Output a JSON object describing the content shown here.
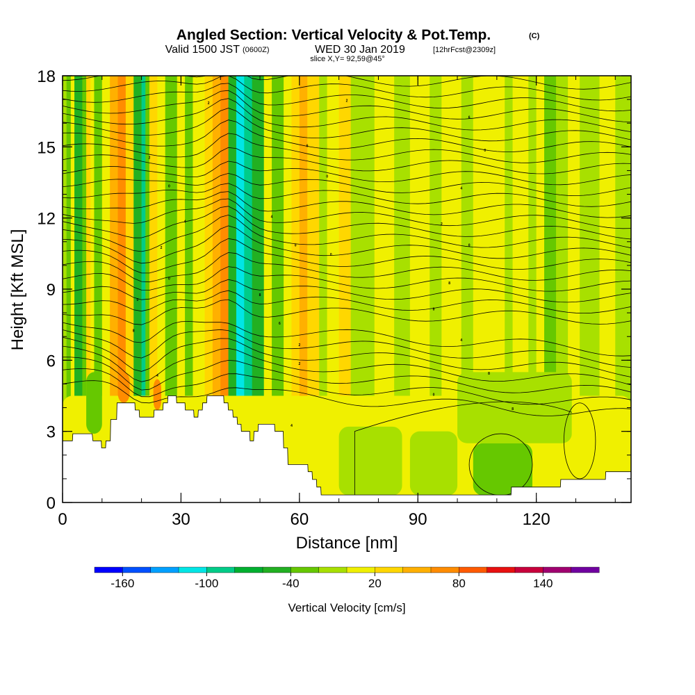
{
  "header": {
    "title": "Angled Section: Vertical Velocity & Pot.Temp.",
    "title_units": "(C)",
    "valid_prefix": "Valid 1500 JST",
    "valid_utc": "(0600Z)",
    "valid_date": "WED 30 Jan 2019",
    "forecast": "[12hrFcst@2309z]",
    "slice": "slice X,Y= 92,59@45°"
  },
  "chart_data": {
    "type": "heatmap",
    "xlabel": "Distance [nm]",
    "ylabel": "Height [Kft MSL]",
    "xlim": [
      0,
      144
    ],
    "ylim": [
      0,
      18
    ],
    "x_ticks": [
      "0",
      "30",
      "60",
      "90",
      "120"
    ],
    "y_ticks": [
      "0",
      "3",
      "6",
      "9",
      "12",
      "15",
      "18"
    ],
    "x_tick_values": [
      0,
      30,
      60,
      90,
      120
    ],
    "y_tick_values": [
      0,
      3,
      6,
      9,
      12,
      15,
      18
    ],
    "x_minor_step": 10,
    "y_minor_step": 1,
    "colorbar": {
      "title": "Vertical Velocity [cm/s]",
      "levels": [
        -180,
        -160,
        -140,
        -120,
        -100,
        -80,
        -60,
        -40,
        -20,
        0,
        20,
        40,
        60,
        80,
        100,
        120,
        140,
        160,
        180
      ],
      "labels": [
        "-160",
        "-100",
        "-40",
        "20",
        "80",
        "140"
      ],
      "label_values": [
        -160,
        -100,
        -40,
        20,
        80,
        140
      ],
      "colors": [
        "#0000ff",
        "#0050ff",
        "#00a0ff",
        "#00e6e6",
        "#00cc88",
        "#00b030",
        "#22b022",
        "#66c800",
        "#a8e000",
        "#f0f000",
        "#ffd700",
        "#ffb000",
        "#ff8c00",
        "#ff5a00",
        "#e81010",
        "#c8003c",
        "#a00070",
        "#7000a0"
      ]
    },
    "field_colors": {
      "weak_ascent": "#f0f000",
      "weak_descent": "#a8e000",
      "moderate_descent": "#66c800",
      "strong_descent": "#22b022",
      "very_strong_descent": "#00cc88",
      "extreme_descent": "#00e6e6",
      "moderate_ascent": "#ffd700",
      "strong_ascent": "#ffb000",
      "very_strong_ascent": "#ff8c00"
    },
    "terrain": [
      [
        0,
        2.6
      ],
      [
        2.5,
        2.6
      ],
      [
        2.6,
        2.9
      ],
      [
        7.5,
        2.9
      ],
      [
        7.7,
        2.6
      ],
      [
        9.8,
        2.6
      ],
      [
        9.9,
        2.3
      ],
      [
        10.9,
        2.3
      ],
      [
        11,
        2.6
      ],
      [
        12.1,
        2.6
      ],
      [
        12.2,
        3.5
      ],
      [
        13.7,
        3.5
      ],
      [
        13.8,
        4.2
      ],
      [
        18.3,
        4.2
      ],
      [
        18.4,
        3.9
      ],
      [
        19.4,
        3.9
      ],
      [
        19.5,
        3.6
      ],
      [
        23.1,
        3.6
      ],
      [
        23.2,
        3.9
      ],
      [
        25.4,
        3.9
      ],
      [
        25.5,
        4.2
      ],
      [
        26.6,
        4.2
      ],
      [
        26.7,
        4.5
      ],
      [
        28.8,
        4.5
      ],
      [
        28.9,
        4.2
      ],
      [
        31,
        4.2
      ],
      [
        31.1,
        3.9
      ],
      [
        33.2,
        3.9
      ],
      [
        33.3,
        3.6
      ],
      [
        34.3,
        3.6
      ],
      [
        34.4,
        3.9
      ],
      [
        35.4,
        3.9
      ],
      [
        35.5,
        4.2
      ],
      [
        36.5,
        4.2
      ],
      [
        36.6,
        4.5
      ],
      [
        40.8,
        4.5
      ],
      [
        40.9,
        4.2
      ],
      [
        41.9,
        4.2
      ],
      [
        42,
        3.9
      ],
      [
        43.1,
        3.9
      ],
      [
        43.2,
        3.6
      ],
      [
        44.2,
        3.6
      ],
      [
        44.3,
        3.3
      ],
      [
        45.2,
        3.3
      ],
      [
        45.3,
        3.0
      ],
      [
        47.4,
        3.0
      ],
      [
        47.5,
        2.6
      ],
      [
        48.4,
        2.6
      ],
      [
        48.5,
        3.0
      ],
      [
        49.5,
        3.0
      ],
      [
        49.6,
        3.3
      ],
      [
        53.7,
        3.3
      ],
      [
        53.8,
        3.0
      ],
      [
        55.9,
        3.0
      ],
      [
        56,
        2.3
      ],
      [
        57,
        2.3
      ],
      [
        57.1,
        1.6
      ],
      [
        59.2,
        1.6
      ],
      [
        59.3,
        1.6
      ],
      [
        62.1,
        1.6
      ],
      [
        62.2,
        1.3
      ],
      [
        63.2,
        1.3
      ],
      [
        63.3,
        0.97
      ],
      [
        64.3,
        0.97
      ],
      [
        64.4,
        0.65
      ],
      [
        65.4,
        0.65
      ],
      [
        65.5,
        0.32
      ],
      [
        113.6,
        0.32
      ],
      [
        113.7,
        0.65
      ],
      [
        126.1,
        0.65
      ],
      [
        126.2,
        0.97
      ],
      [
        137.5,
        0.97
      ],
      [
        137.6,
        1.3
      ],
      [
        144,
        1.3
      ]
    ],
    "vertical_velocity_bands": [
      {
        "x0": 0,
        "x1": 1,
        "kind": "weak_descent"
      },
      {
        "x0": 1,
        "x1": 2,
        "kind": "moderate_descent"
      },
      {
        "x0": 3,
        "x1": 5,
        "kind": "strong_descent"
      },
      {
        "x0": 5,
        "x1": 6,
        "kind": "moderate_descent"
      },
      {
        "x0": 6,
        "x1": 7,
        "kind": "moderate_ascent"
      },
      {
        "x0": 8,
        "x1": 10,
        "kind": "moderate_descent"
      },
      {
        "x0": 10,
        "x1": 11,
        "kind": "weak_ascent"
      },
      {
        "x0": 12,
        "x1": 14,
        "kind": "strong_ascent"
      },
      {
        "x0": 14,
        "x1": 16,
        "kind": "very_strong_ascent"
      },
      {
        "x0": 16,
        "x1": 18,
        "kind": "moderate_ascent"
      },
      {
        "x0": 18,
        "x1": 20,
        "kind": "strong_descent"
      },
      {
        "x0": 20,
        "x1": 21,
        "kind": "very_strong_descent"
      },
      {
        "x0": 21,
        "x1": 22,
        "kind": "moderate_descent"
      },
      {
        "x0": 22,
        "x1": 24,
        "kind": "moderate_ascent"
      },
      {
        "x0": 24,
        "x1": 26,
        "kind": "weak_ascent"
      },
      {
        "x0": 26,
        "x1": 29,
        "kind": "moderate_descent"
      },
      {
        "x0": 29,
        "x1": 31,
        "kind": "weak_ascent"
      },
      {
        "x0": 31,
        "x1": 33,
        "kind": "moderate_descent"
      },
      {
        "x0": 33,
        "x1": 36,
        "kind": "weak_ascent"
      },
      {
        "x0": 36,
        "x1": 38,
        "kind": "moderate_ascent"
      },
      {
        "x0": 38,
        "x1": 40,
        "kind": "strong_ascent"
      },
      {
        "x0": 40,
        "x1": 42,
        "kind": "very_strong_ascent"
      },
      {
        "x0": 42,
        "x1": 44,
        "kind": "strong_descent"
      },
      {
        "x0": 44,
        "x1": 46,
        "kind": "extreme_descent"
      },
      {
        "x0": 46,
        "x1": 48,
        "kind": "very_strong_descent"
      },
      {
        "x0": 48,
        "x1": 51,
        "kind": "strong_descent"
      },
      {
        "x0": 51,
        "x1": 53,
        "kind": "weak_ascent"
      },
      {
        "x0": 53,
        "x1": 56,
        "kind": "moderate_descent"
      },
      {
        "x0": 56,
        "x1": 58,
        "kind": "weak_ascent"
      },
      {
        "x0": 58,
        "x1": 60,
        "kind": "moderate_ascent"
      },
      {
        "x0": 60,
        "x1": 62,
        "kind": "strong_ascent"
      },
      {
        "x0": 62,
        "x1": 65,
        "kind": "moderate_ascent"
      },
      {
        "x0": 65,
        "x1": 67,
        "kind": "weak_descent"
      },
      {
        "x0": 67,
        "x1": 70,
        "kind": "weak_ascent"
      },
      {
        "x0": 70,
        "x1": 73,
        "kind": "moderate_ascent"
      },
      {
        "x0": 73,
        "x1": 79,
        "kind": "weak_descent"
      },
      {
        "x0": 79,
        "x1": 84,
        "kind": "weak_ascent"
      },
      {
        "x0": 84,
        "x1": 88,
        "kind": "weak_descent"
      },
      {
        "x0": 88,
        "x1": 93,
        "kind": "weak_ascent"
      },
      {
        "x0": 93,
        "x1": 96,
        "kind": "weak_descent"
      },
      {
        "x0": 96,
        "x1": 101,
        "kind": "weak_ascent"
      },
      {
        "x0": 101,
        "x1": 104,
        "kind": "weak_descent"
      },
      {
        "x0": 104,
        "x1": 112,
        "kind": "weak_ascent"
      },
      {
        "x0": 112,
        "x1": 114,
        "kind": "weak_descent"
      },
      {
        "x0": 114,
        "x1": 118,
        "kind": "weak_ascent"
      },
      {
        "x0": 118,
        "x1": 120,
        "kind": "weak_descent"
      },
      {
        "x0": 120,
        "x1": 122,
        "kind": "weak_ascent"
      },
      {
        "x0": 122,
        "x1": 125,
        "kind": "moderate_descent"
      },
      {
        "x0": 125,
        "x1": 128,
        "kind": "weak_descent"
      },
      {
        "x0": 128,
        "x1": 131,
        "kind": "weak_ascent"
      },
      {
        "x0": 131,
        "x1": 136,
        "kind": "weak_descent"
      },
      {
        "x0": 136,
        "x1": 140,
        "kind": "weak_ascent"
      },
      {
        "x0": 140,
        "x1": 144,
        "kind": "weak_descent"
      }
    ],
    "low_level_regions": [
      {
        "x0": 0,
        "x1": 144,
        "y0": 0,
        "y1": 4.5,
        "kind": "weak_ascent"
      },
      {
        "x0": 70,
        "x1": 86,
        "y0": 0.3,
        "y1": 3.2,
        "kind": "weak_descent"
      },
      {
        "x0": 88,
        "x1": 100,
        "y0": 0.3,
        "y1": 3.0,
        "kind": "weak_descent"
      },
      {
        "x0": 104,
        "x1": 119,
        "y0": 0.3,
        "y1": 2.5,
        "kind": "moderate_descent"
      },
      {
        "x0": 100,
        "x1": 129,
        "y0": 2.5,
        "y1": 5.5,
        "kind": "weak_descent"
      },
      {
        "x0": 129,
        "x1": 134,
        "y0": 1.0,
        "y1": 4.2,
        "kind": "weak_ascent"
      },
      {
        "x0": 6,
        "x1": 10,
        "y0": 2.9,
        "y1": 5.5,
        "kind": "moderate_descent"
      },
      {
        "x0": 14,
        "x1": 17,
        "y0": 4.2,
        "y1": 5.5,
        "kind": "very_strong_ascent"
      },
      {
        "x0": 23,
        "x1": 25,
        "y0": 3.9,
        "y1": 5.2,
        "kind": "very_strong_ascent"
      }
    ],
    "contour_labels": [
      {
        "text": "2",
        "x": 37,
        "y": 16.8
      },
      {
        "text": "2",
        "x": 72,
        "y": 16.9
      },
      {
        "text": "6",
        "x": 103,
        "y": 16.2
      },
      {
        "text": "2",
        "x": 22,
        "y": 14.5
      },
      {
        "text": "6",
        "x": 62,
        "y": 15.0
      },
      {
        "text": "0",
        "x": 107,
        "y": 14.8
      },
      {
        "text": "0",
        "x": 27,
        "y": 13.3
      },
      {
        "text": "0",
        "x": 67,
        "y": 13.7
      },
      {
        "text": "4",
        "x": 101,
        "y": 13.2
      },
      {
        "text": "4",
        "x": 31,
        "y": 11.8
      },
      {
        "text": "4",
        "x": 53,
        "y": 12.0
      },
      {
        "text": "2",
        "x": 96,
        "y": 11.7
      },
      {
        "text": "2",
        "x": 25,
        "y": 10.7
      },
      {
        "text": "0",
        "x": 59,
        "y": 10.8
      },
      {
        "text": "0",
        "x": 68,
        "y": 10.4
      },
      {
        "text": "0",
        "x": 103,
        "y": 10.8
      },
      {
        "text": "0",
        "x": 27,
        "y": 9.4
      },
      {
        "text": "8",
        "x": 50,
        "y": 8.7
      },
      {
        "text": "8",
        "x": 98,
        "y": 9.2
      },
      {
        "text": "0",
        "x": 19,
        "y": 8.5
      },
      {
        "text": "8",
        "x": 94,
        "y": 8.1
      },
      {
        "text": "6",
        "x": 55,
        "y": 7.5
      },
      {
        "text": "8",
        "x": 18,
        "y": 7.2
      },
      {
        "text": "4",
        "x": 101,
        "y": 6.8
      },
      {
        "text": "2",
        "x": 60,
        "y": 6.6
      },
      {
        "text": "2",
        "x": 60,
        "y": 5.8
      },
      {
        "text": "4",
        "x": 24,
        "y": 5.3
      },
      {
        "text": "8",
        "x": 108,
        "y": 5.4
      },
      {
        "text": "0",
        "x": 94,
        "y": 4.5
      },
      {
        "text": "4",
        "x": 58,
        "y": 3.2
      },
      {
        "text": "8",
        "x": 114,
        "y": 3.9
      }
    ],
    "grid": false
  }
}
